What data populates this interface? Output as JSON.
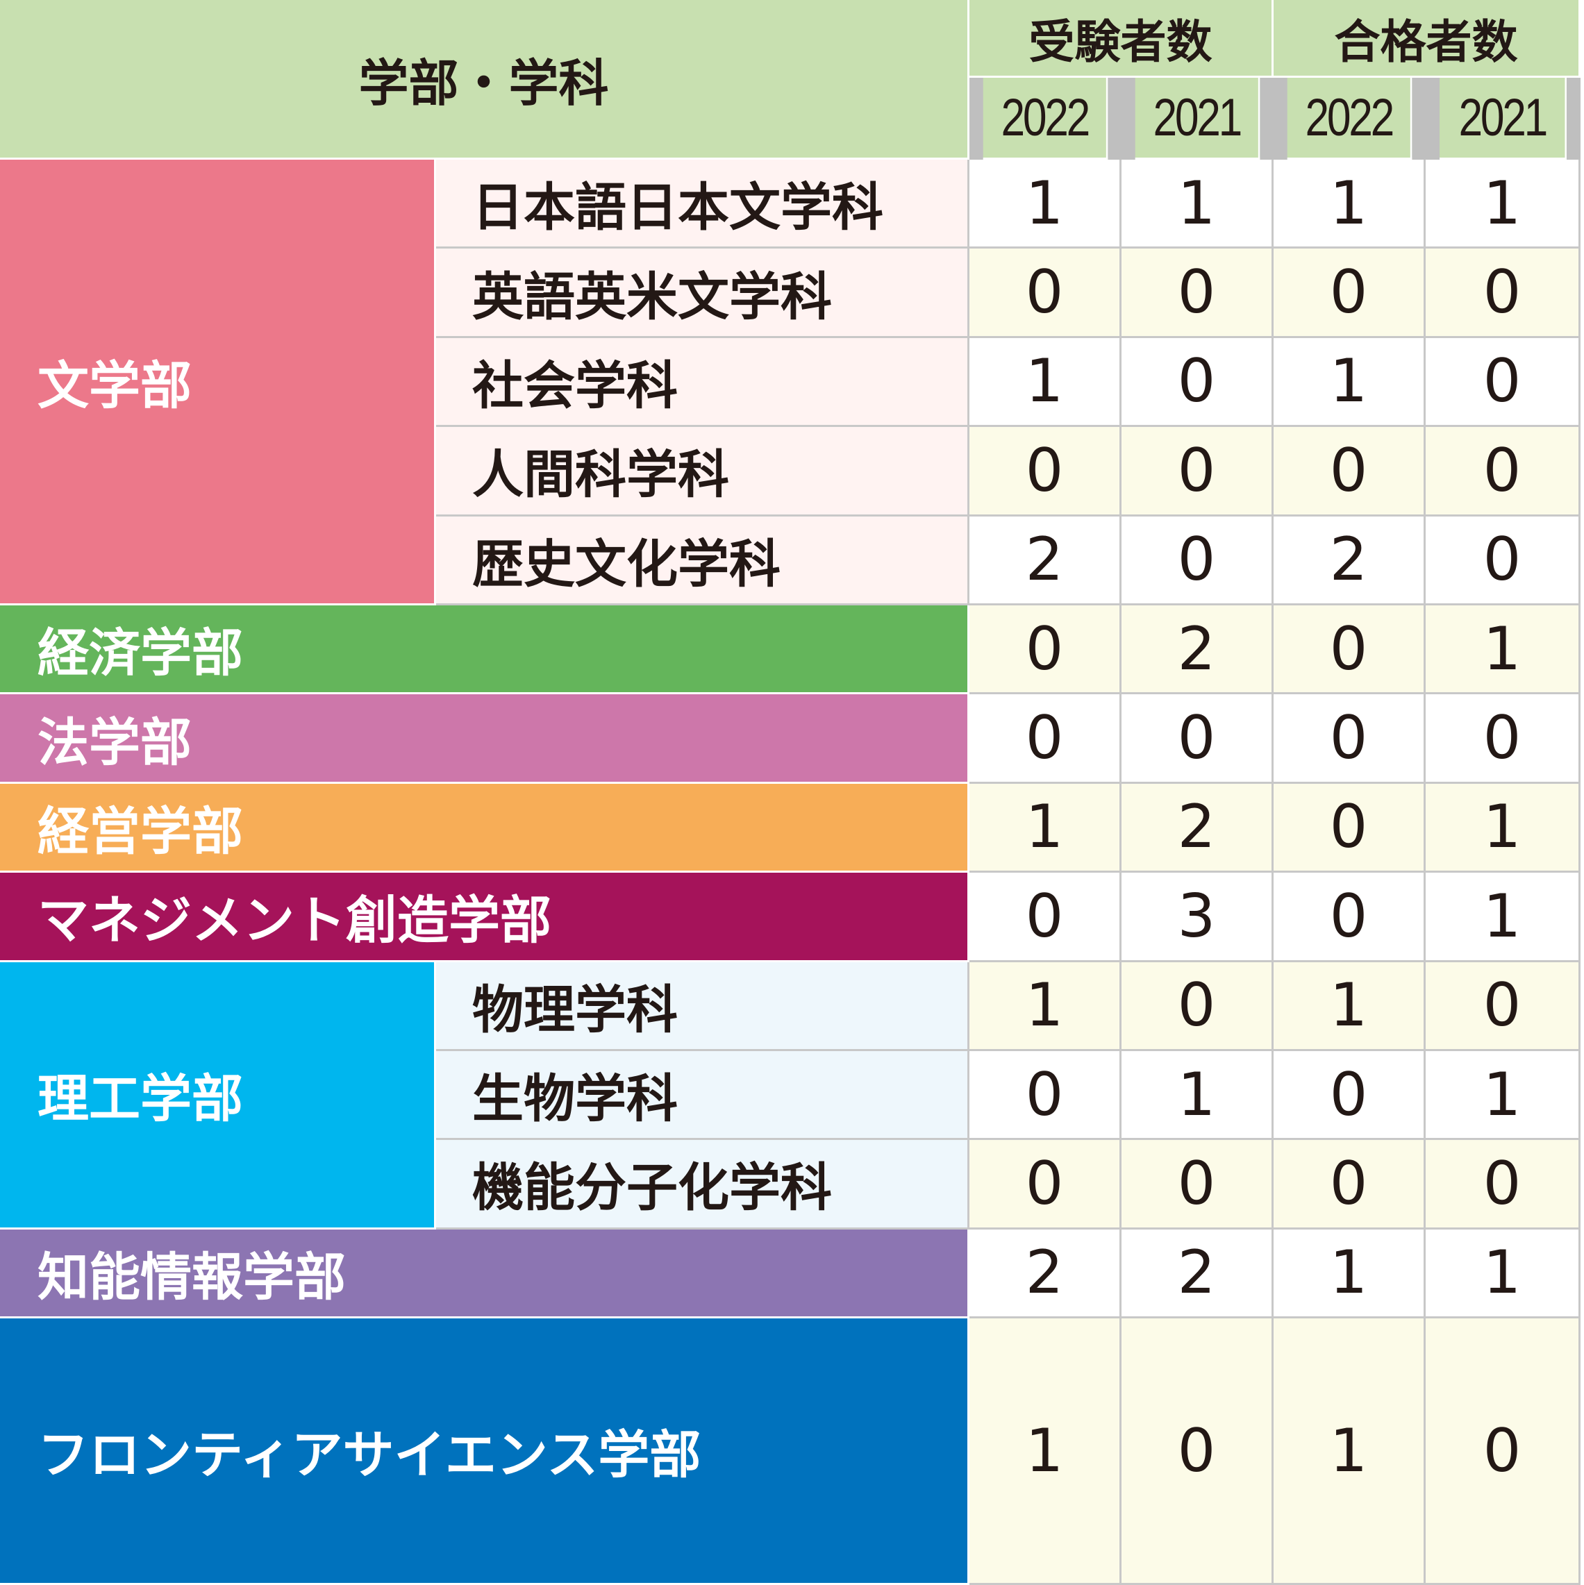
{
  "header": {
    "title": "学部・学科",
    "group_examinees": "受験者数",
    "group_passed": "合格者数",
    "year_a": "2022",
    "year_b": "2021",
    "year_c": "2022",
    "year_d": "2021"
  },
  "rows": [
    {
      "faculty": "文学部",
      "department": "日本語日本文学科",
      "values": [
        "1",
        "1",
        "1",
        "1"
      ]
    },
    {
      "department": "英語英米文学科",
      "values": [
        "0",
        "0",
        "0",
        "0"
      ]
    },
    {
      "department": "社会学科",
      "values": [
        "1",
        "0",
        "1",
        "0"
      ]
    },
    {
      "department": "人間科学科",
      "values": [
        "0",
        "0",
        "0",
        "0"
      ]
    },
    {
      "department": "歴史文化学科",
      "values": [
        "2",
        "0",
        "2",
        "0"
      ]
    },
    {
      "faculty": "経済学部",
      "values": [
        "0",
        "2",
        "0",
        "1"
      ]
    },
    {
      "faculty": "法学部",
      "values": [
        "0",
        "0",
        "0",
        "0"
      ]
    },
    {
      "faculty": "経営学部",
      "values": [
        "1",
        "2",
        "0",
        "1"
      ]
    },
    {
      "faculty": "マネジメント創造学部",
      "values": [
        "0",
        "3",
        "0",
        "1"
      ]
    },
    {
      "faculty": "理工学部",
      "department": "物理学科",
      "values": [
        "1",
        "0",
        "1",
        "0"
      ]
    },
    {
      "department": "生物学科",
      "values": [
        "0",
        "1",
        "0",
        "1"
      ]
    },
    {
      "department": "機能分子化学科",
      "values": [
        "0",
        "0",
        "0",
        "0"
      ]
    },
    {
      "faculty": "知能情報学部",
      "values": [
        "2",
        "2",
        "1",
        "1"
      ]
    },
    {
      "faculty": "フロンティアサイエンス学部",
      "values": [
        "1",
        "0",
        "1",
        "0"
      ]
    }
  ],
  "colors": {
    "header_bg": "#c8e0b0",
    "literature": "#ec788a",
    "economics": "#64b55b",
    "law": "#cd77aa",
    "business": "#f7ad57",
    "management": "#a5135a",
    "science": "#00b6ee",
    "informatics": "#8c75b2",
    "frontier": "#0072bd"
  }
}
